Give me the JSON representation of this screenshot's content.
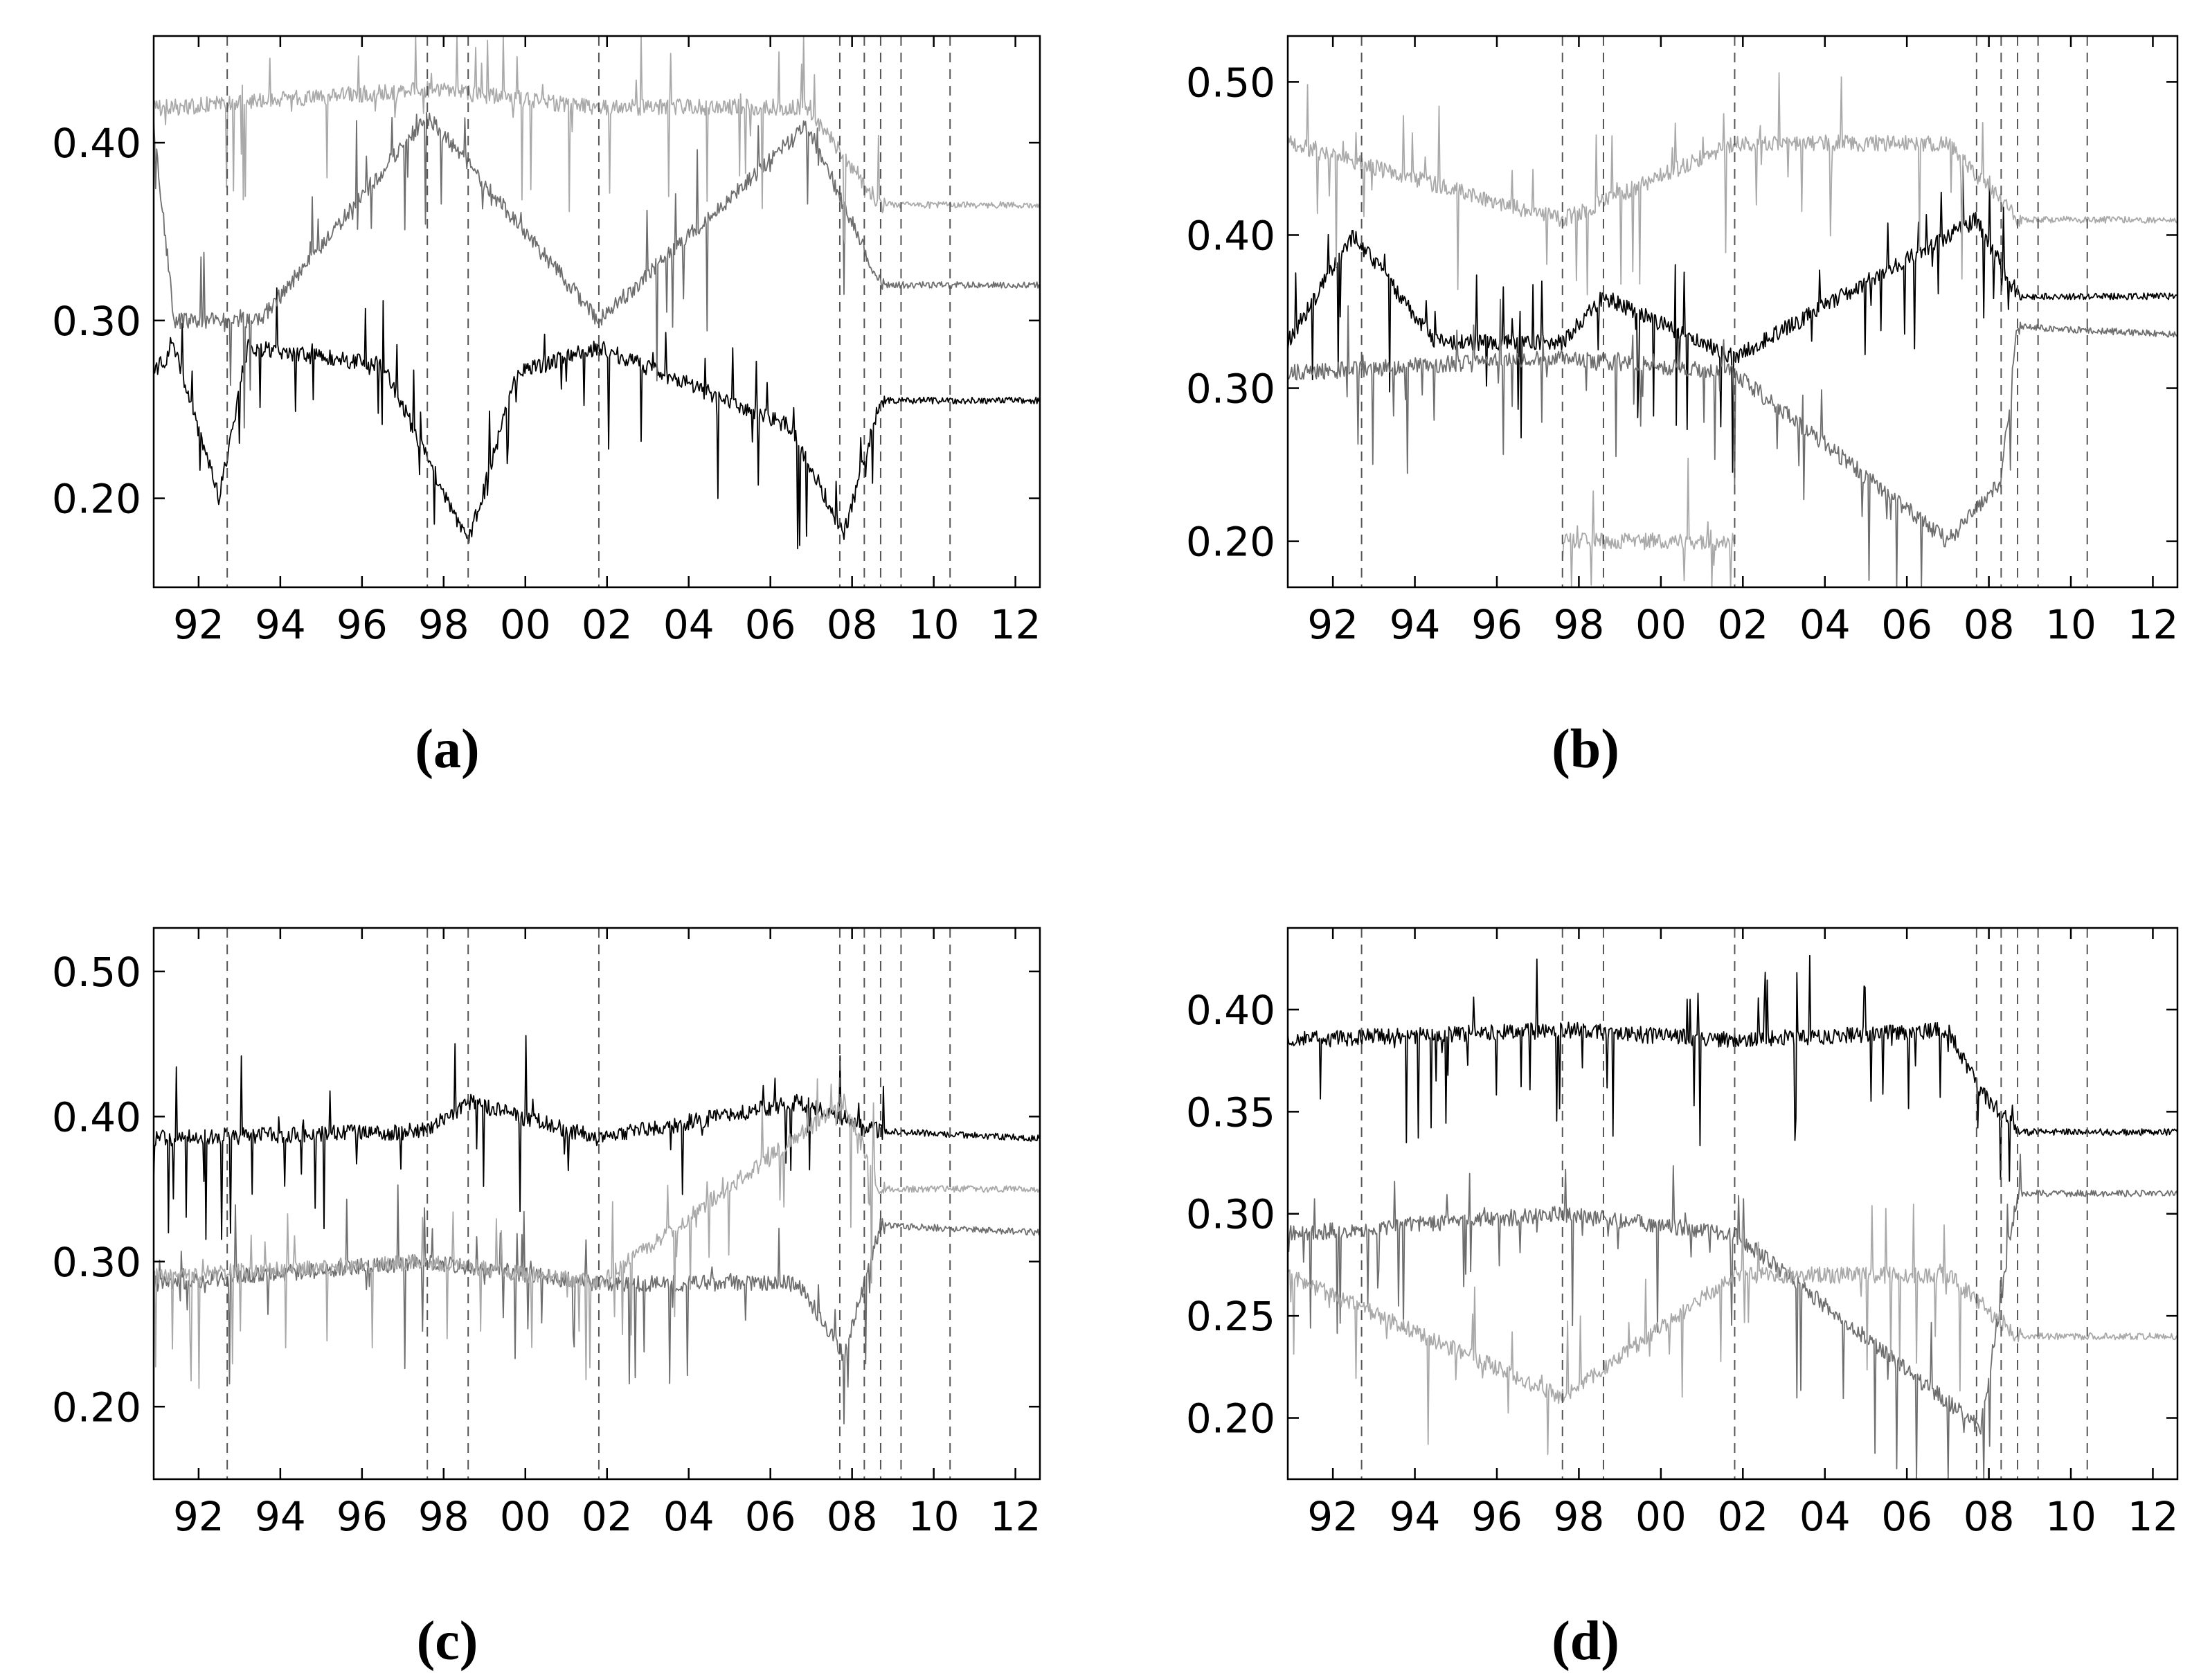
{
  "figure": {
    "x_tick_labels": [
      "92",
      "94",
      "96",
      "98",
      "00",
      "02",
      "04",
      "06",
      "08",
      "10",
      "12"
    ],
    "event_dates_approx": [
      1992.7,
      1997.6,
      1998.6,
      2001.8,
      2007.7,
      2008.3,
      2008.7,
      2009.2,
      2010.4
    ],
    "colors": {
      "dark": "#000000",
      "mid": "#6e6e6e",
      "light": "#a9a9a9",
      "event_line": "#555555"
    }
  },
  "chart_data": [
    {
      "type": "line",
      "label": "(a)",
      "xlim": [
        1990.9,
        2012.6
      ],
      "ylim": [
        0.15,
        0.46
      ],
      "y_ticks": [
        0.2,
        0.3,
        0.4
      ],
      "y_tick_labels": [
        "0.20",
        "0.30",
        "0.40"
      ],
      "grid": false,
      "series": [
        {
          "color": "dark",
          "regimes": [
            [
              1990.9,
              0.27
            ],
            [
              1991.4,
              0.285
            ],
            [
              1992.5,
              0.2
            ],
            [
              1993.2,
              0.285
            ],
            [
              1996.5,
              0.275
            ],
            [
              1998.6,
              0.175
            ],
            [
              1999.8,
              0.27
            ],
            [
              2001.8,
              0.285
            ],
            [
              2006.5,
              0.24
            ],
            [
              2007.8,
              0.18
            ],
            [
              2008.7,
              0.255
            ],
            [
              2012.6,
              0.255
            ]
          ]
        },
        {
          "color": "mid",
          "regimes": [
            [
              1990.9,
              0.41
            ],
            [
              1991.4,
              0.3
            ],
            [
              1993.5,
              0.3
            ],
            [
              1997.6,
              0.415
            ],
            [
              2001.8,
              0.3
            ],
            [
              2006.9,
              0.41
            ],
            [
              2008.7,
              0.32
            ],
            [
              2012.6,
              0.32
            ]
          ]
        },
        {
          "color": "light",
          "regimes": [
            [
              1990.9,
              0.42
            ],
            [
              1991.4,
              0.42
            ],
            [
              1997.6,
              0.43
            ],
            [
              2001.8,
              0.42
            ],
            [
              2006.9,
              0.42
            ],
            [
              2008.7,
              0.365
            ],
            [
              2012.6,
              0.365
            ]
          ]
        }
      ]
    },
    {
      "type": "line",
      "label": "(b)",
      "xlim": [
        1990.9,
        2012.6
      ],
      "ylim": [
        0.17,
        0.53
      ],
      "y_ticks": [
        0.2,
        0.3,
        0.4,
        0.5
      ],
      "y_tick_labels": [
        "0.20",
        "0.30",
        "0.40",
        "0.50"
      ],
      "grid": false,
      "series": [
        {
          "color": "dark",
          "regimes": [
            [
              1990.9,
              0.33
            ],
            [
              1992.5,
              0.4
            ],
            [
              1994.5,
              0.33
            ],
            [
              1997.6,
              0.33
            ],
            [
              1998.6,
              0.36
            ],
            [
              2001.8,
              0.32
            ],
            [
              2007.7,
              0.41
            ],
            [
              2008.7,
              0.36
            ],
            [
              2012.6,
              0.36
            ]
          ]
        },
        {
          "color": "mid",
          "regimes": [
            [
              1990.9,
              0.31
            ],
            [
              1997.6,
              0.32
            ],
            [
              2001.8,
              0.31
            ],
            [
              2007.0,
              0.2
            ],
            [
              2008.3,
              0.24
            ],
            [
              2008.7,
              0.34
            ],
            [
              2012.6,
              0.335
            ]
          ]
        },
        {
          "color": "light",
          "regimes": [
            [
              1990.9,
              0.46
            ],
            [
              1997.6,
              0.41
            ],
            [
              2001.8,
              0.46
            ],
            [
              2007.0,
              0.46
            ],
            [
              2008.7,
              0.41
            ],
            [
              2012.6,
              0.41
            ]
          ]
        },
        {
          "color": "light",
          "regimes": [
            [
              1997.6,
              0.2
            ],
            [
              2001.8,
              0.2
            ]
          ]
        }
      ]
    },
    {
      "type": "line",
      "label": "(c)",
      "xlim": [
        1990.9,
        2012.6
      ],
      "ylim": [
        0.15,
        0.53
      ],
      "y_ticks": [
        0.2,
        0.3,
        0.4,
        0.5
      ],
      "y_tick_labels": [
        "0.20",
        "0.30",
        "0.40",
        "0.50"
      ],
      "grid": false,
      "series": [
        {
          "color": "dark",
          "regimes": [
            [
              1990.9,
              0.385
            ],
            [
              1997.6,
              0.39
            ],
            [
              1998.6,
              0.41
            ],
            [
              2001.8,
              0.385
            ],
            [
              2006.7,
              0.41
            ],
            [
              2008.7,
              0.39
            ],
            [
              2012.6,
              0.385
            ]
          ]
        },
        {
          "color": "mid",
          "regimes": [
            [
              1990.9,
              0.285
            ],
            [
              1997.6,
              0.3
            ],
            [
              2001.8,
              0.285
            ],
            [
              2006.7,
              0.285
            ],
            [
              2007.8,
              0.235
            ],
            [
              2008.7,
              0.325
            ],
            [
              2012.6,
              0.32
            ]
          ]
        },
        {
          "color": "light",
          "regimes": [
            [
              1990.9,
              0.29
            ],
            [
              1997.6,
              0.3
            ],
            [
              2001.8,
              0.285
            ],
            [
              2007.8,
              0.41
            ],
            [
              2008.7,
              0.35
            ],
            [
              2012.6,
              0.35
            ]
          ]
        }
      ]
    },
    {
      "type": "line",
      "label": "(d)",
      "xlim": [
        1990.9,
        2012.6
      ],
      "ylim": [
        0.17,
        0.44
      ],
      "y_ticks": [
        0.2,
        0.25,
        0.3,
        0.35,
        0.4
      ],
      "y_tick_labels": [
        "0.20",
        "0.25",
        "0.30",
        "0.35",
        "0.40"
      ],
      "grid": false,
      "series": [
        {
          "color": "dark",
          "regimes": [
            [
              1990.9,
              0.385
            ],
            [
              1997.6,
              0.39
            ],
            [
              2001.8,
              0.385
            ],
            [
              2007.0,
              0.39
            ],
            [
              2007.8,
              0.36
            ],
            [
              2008.7,
              0.34
            ],
            [
              2012.6,
              0.34
            ]
          ]
        },
        {
          "color": "mid",
          "regimes": [
            [
              1990.9,
              0.29
            ],
            [
              1997.6,
              0.3
            ],
            [
              2001.8,
              0.29
            ],
            [
              2007.8,
              0.195
            ],
            [
              2008.7,
              0.31
            ],
            [
              2012.6,
              0.31
            ]
          ]
        },
        {
          "color": "light",
          "regimes": [
            [
              1990.9,
              0.27
            ],
            [
              1997.6,
              0.21
            ],
            [
              2001.8,
              0.27
            ],
            [
              2007.0,
              0.27
            ],
            [
              2008.7,
              0.24
            ],
            [
              2012.6,
              0.24
            ]
          ]
        }
      ]
    }
  ]
}
